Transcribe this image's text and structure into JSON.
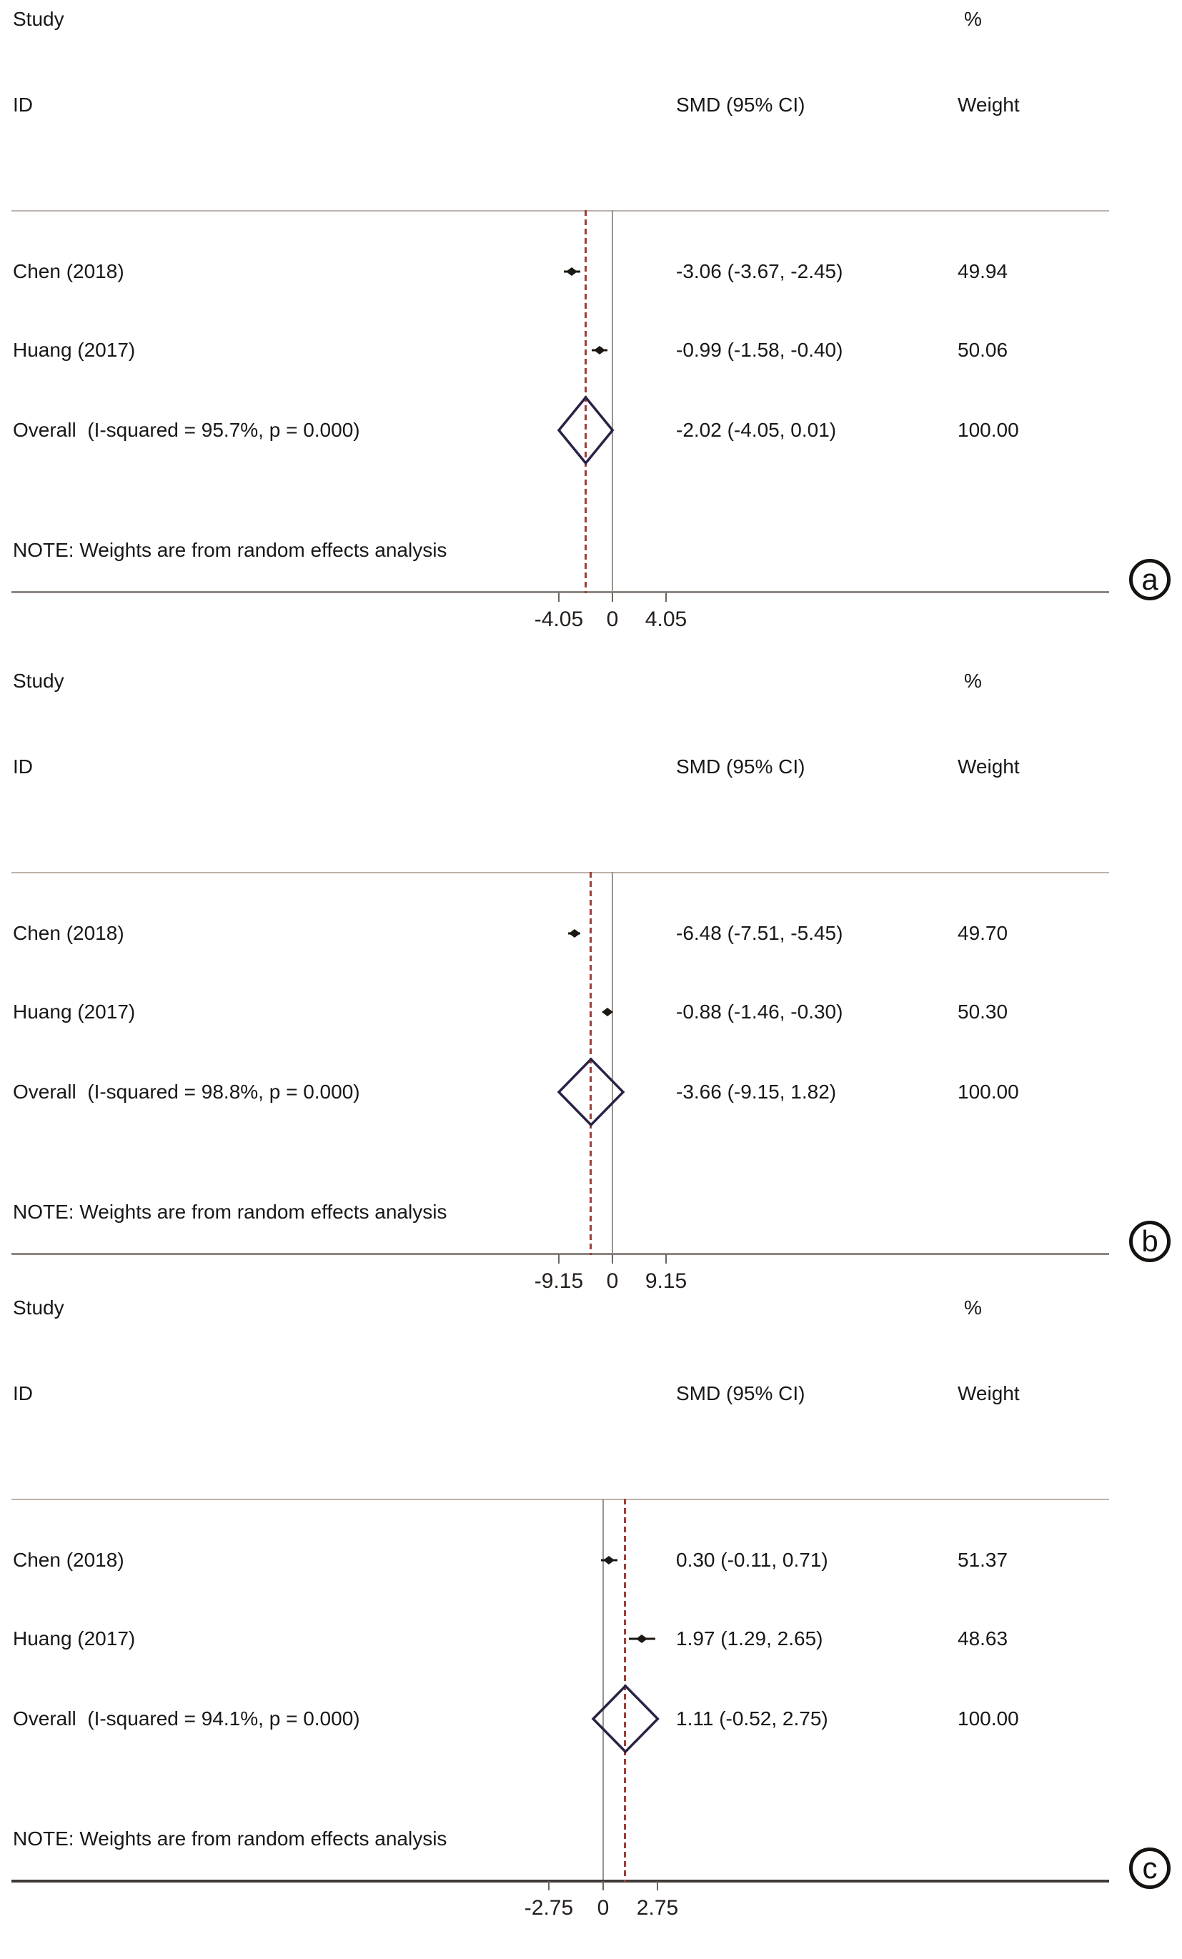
{
  "figure_note": "NOTE: Weights are from random effects analysis",
  "colors": {
    "overall_effect_dashed_line": "#9e3d38",
    "pooled_diamond_outline": "#2b2145",
    "zero_line": "#9a948f",
    "study_marker": "#1b1713",
    "header_rule": "#bdb2ac",
    "axis_rule": "#8d8783",
    "axis_rule_bold": "#3f3937",
    "text": "#1a1816"
  },
  "chart_data": [
    {
      "type": "scatter",
      "variant": "forest-plot",
      "panel_label": "a",
      "header": {
        "study": "Study",
        "id": "ID",
        "smd_ci": "SMD (95% CI)",
        "percent": "%",
        "weight": "Weight"
      },
      "studies": [
        {
          "id": "Chen (2018)",
          "smd": -3.06,
          "ci_low": -3.67,
          "ci_high": -2.45,
          "smd_text": "-3.06 (-3.67, -2.45)",
          "weight": 49.94,
          "weight_text": "49.94"
        },
        {
          "id": "Huang (2017)",
          "smd": -0.99,
          "ci_low": -1.58,
          "ci_high": -0.4,
          "smd_text": "-0.99 (-1.58, -0.40)",
          "weight": 50.06,
          "weight_text": "50.06"
        }
      ],
      "overall": {
        "label": "Overall  (I-squared = 95.7%, p = 0.000)",
        "smd": -2.02,
        "ci_low": -4.05,
        "ci_high": 0.01,
        "smd_text": "-2.02 (-4.05, 0.01)",
        "weight": 100.0,
        "weight_text": "100.00"
      },
      "note": "NOTE: Weights are from random effects analysis",
      "axis": {
        "ticks": [
          -4.05,
          0,
          4.05
        ],
        "tick_labels": [
          "-4.05",
          "0",
          "4.05"
        ],
        "xlim": [
          -4.05,
          4.05
        ],
        "grid": false
      }
    },
    {
      "type": "scatter",
      "variant": "forest-plot",
      "panel_label": "b",
      "header": {
        "study": "Study",
        "id": "ID",
        "smd_ci": "SMD (95% CI)",
        "percent": "%",
        "weight": "Weight"
      },
      "studies": [
        {
          "id": "Chen (2018)",
          "smd": -6.48,
          "ci_low": -7.51,
          "ci_high": -5.45,
          "smd_text": "-6.48 (-7.51, -5.45)",
          "weight": 49.7,
          "weight_text": "49.70"
        },
        {
          "id": "Huang (2017)",
          "smd": -0.88,
          "ci_low": -1.46,
          "ci_high": -0.3,
          "smd_text": "-0.88 (-1.46, -0.30)",
          "weight": 50.3,
          "weight_text": "50.30"
        }
      ],
      "overall": {
        "label": "Overall  (I-squared = 98.8%, p = 0.000)",
        "smd": -3.66,
        "ci_low": -9.15,
        "ci_high": 1.82,
        "smd_text": "-3.66 (-9.15, 1.82)",
        "weight": 100.0,
        "weight_text": "100.00"
      },
      "note": "NOTE: Weights are from random effects analysis",
      "axis": {
        "ticks": [
          -9.15,
          0,
          9.15
        ],
        "tick_labels": [
          "-9.15",
          "0",
          "9.15"
        ],
        "xlim": [
          -9.15,
          9.15
        ],
        "grid": false
      }
    },
    {
      "type": "scatter",
      "variant": "forest-plot",
      "panel_label": "c",
      "header": {
        "study": "Study",
        "id": "ID",
        "smd_ci": "SMD (95% CI)",
        "percent": "%",
        "weight": "Weight"
      },
      "studies": [
        {
          "id": "Chen (2018)",
          "smd": 0.3,
          "ci_low": -0.11,
          "ci_high": 0.71,
          "smd_text": "0.30 (-0.11, 0.71)",
          "weight": 51.37,
          "weight_text": "51.37"
        },
        {
          "id": "Huang (2017)",
          "smd": 1.97,
          "ci_low": 1.29,
          "ci_high": 2.65,
          "smd_text": "1.97 (1.29, 2.65)",
          "weight": 48.63,
          "weight_text": "48.63"
        }
      ],
      "overall": {
        "label": "Overall  (I-squared = 94.1%, p = 0.000)",
        "smd": 1.11,
        "ci_low": -0.52,
        "ci_high": 2.75,
        "smd_text": "1.11 (-0.52, 2.75)",
        "weight": 100.0,
        "weight_text": "100.00"
      },
      "note": "NOTE: Weights are from random effects analysis",
      "axis": {
        "ticks": [
          -2.75,
          0,
          2.75
        ],
        "tick_labels": [
          "-2.75",
          "0",
          "2.75"
        ],
        "xlim": [
          -2.75,
          2.75
        ],
        "grid": false
      }
    }
  ]
}
